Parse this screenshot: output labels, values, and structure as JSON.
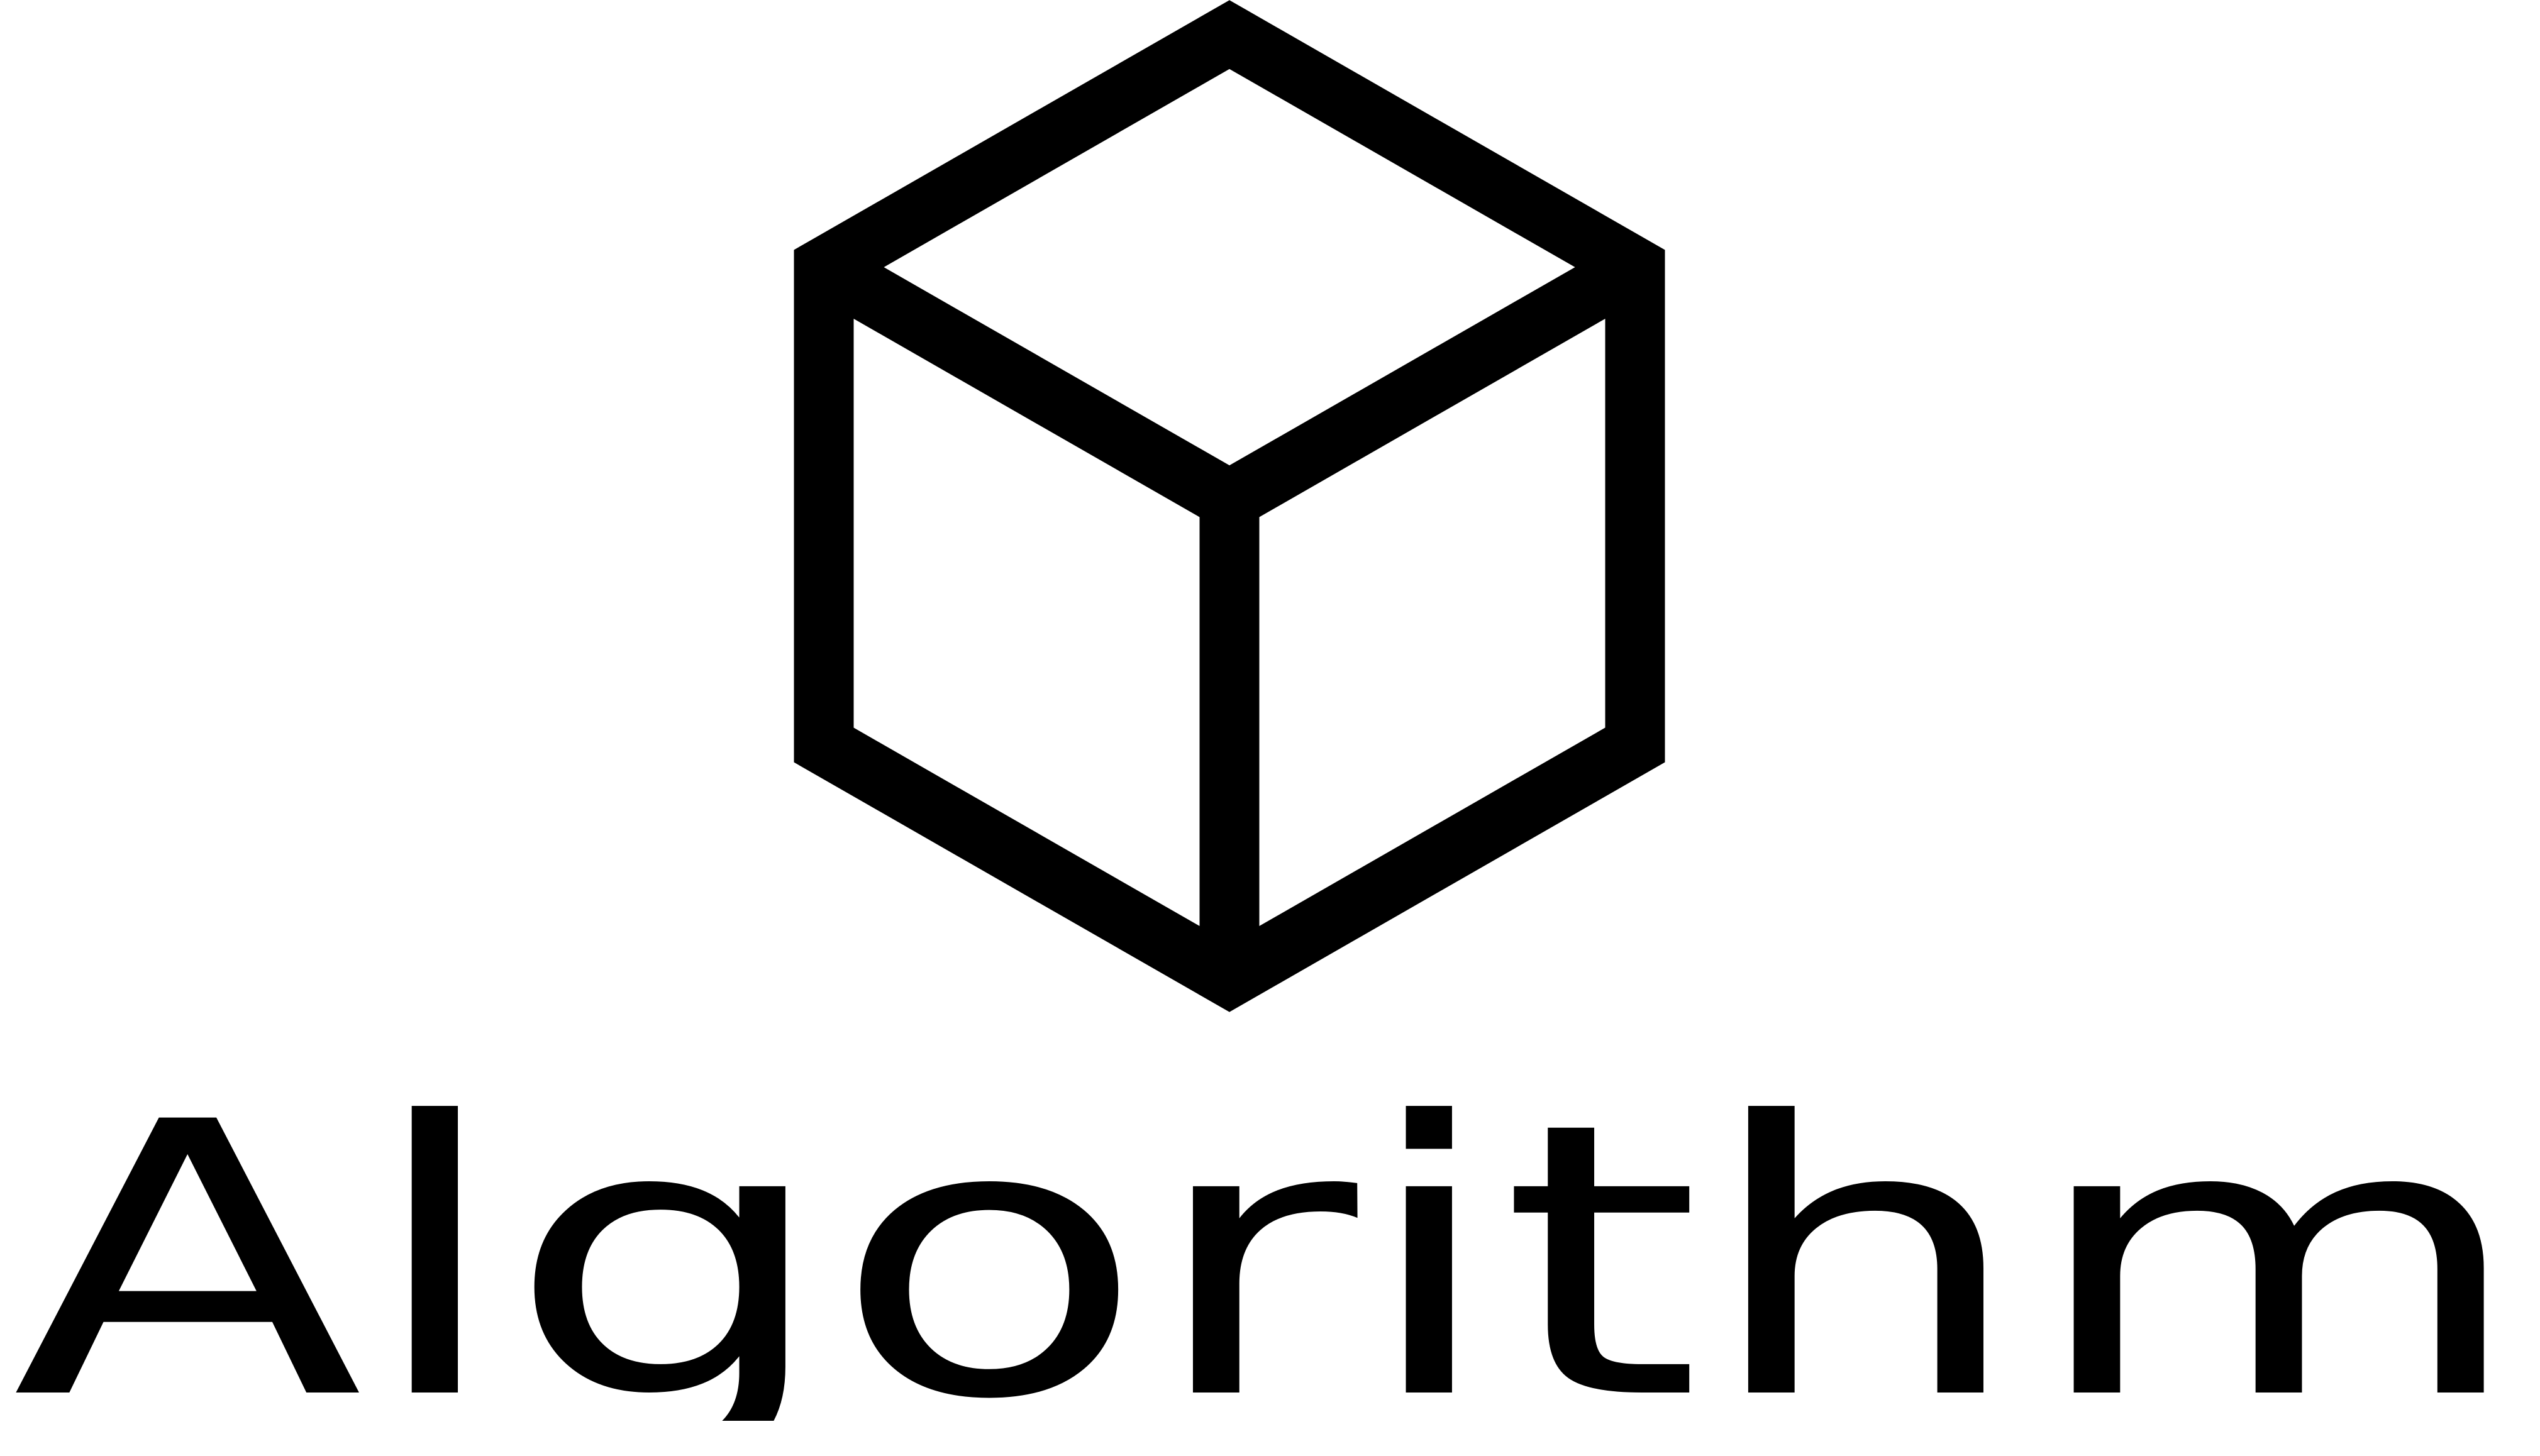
{
  "logo": {
    "name": "Algorithm",
    "icon": "cube-icon",
    "color": "#000000",
    "background": "#ffffff"
  }
}
